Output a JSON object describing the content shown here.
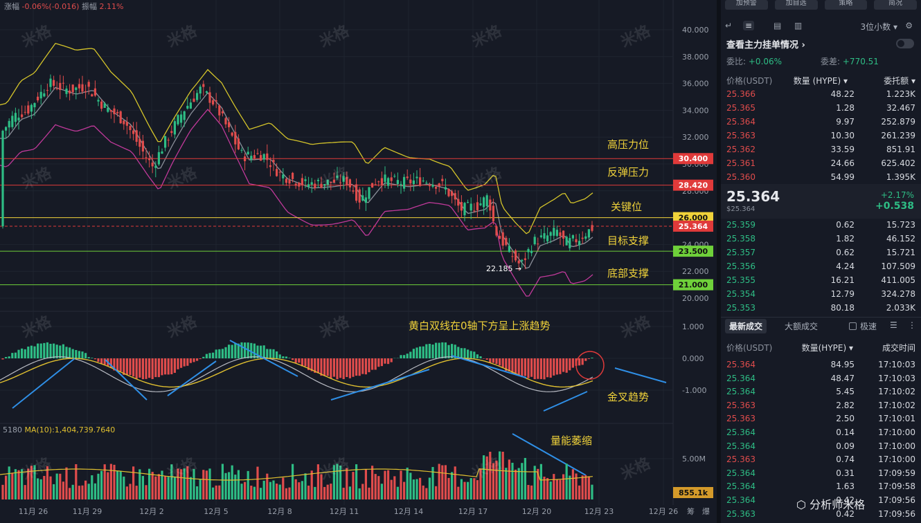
{
  "header": {
    "change_label": "涨幅",
    "change_value": "-0.06%(-0.016)",
    "amplitude_label": "振幅",
    "amplitude_value": "2.11%"
  },
  "volume_info": {
    "prefix": "5180",
    "ma_label": "MA(10):1,404,739.7640"
  },
  "watermark_text": "米格",
  "chart_data": {
    "type": "candlestick",
    "main_axis": {
      "ticks": [
        "40.000",
        "38.000",
        "36.000",
        "34.000",
        "32.000",
        "30.000",
        "28.000",
        "26.000",
        "24.000",
        "22.000",
        "20.000"
      ],
      "ylim": [
        19.6,
        41.4
      ]
    },
    "macd_axis": {
      "ticks": [
        "1.000",
        "0.000",
        "-1.000"
      ]
    },
    "volume_axis": {
      "ticks": [
        "5.00M"
      ]
    },
    "x_ticks": [
      "11月 26",
      "11月 29",
      "12月 2",
      "12月 5",
      "12月 8",
      "12月 11",
      "12月 14",
      "12月 17",
      "12月 20",
      "12月 23",
      "12月 26"
    ],
    "levels": [
      {
        "value": 30.4,
        "label": "30.400",
        "color": "#e03a3a",
        "text_color": "#ffffff"
      },
      {
        "value": 28.42,
        "label": "28.420",
        "color": "#e03a3a",
        "text_color": "#ffffff"
      },
      {
        "value": 26.0,
        "label": "26.000",
        "color": "#f0d23a",
        "text_color": "#111111"
      },
      {
        "value": 25.364,
        "label": "25.364",
        "color": "#e03a3a",
        "text_color": "#ffffff"
      },
      {
        "value": 23.5,
        "label": "23.500",
        "color": "#6fd13a",
        "text_color": "#111111"
      },
      {
        "value": 21.0,
        "label": "21.000",
        "color": "#6fd13a",
        "text_color": "#111111"
      }
    ],
    "volume_tag": "855.1k",
    "low_marker": "22.185 →",
    "annotations": {
      "high_pressure": "高压力位",
      "rebound_pressure": "反弹压力",
      "key_level": "关键位",
      "target_support": "目标支撑",
      "bottom_support": "底部支撑",
      "macd_note": "黄白双线在0轴下方呈上涨趋势",
      "golden_cross": "金叉趋势",
      "volume_shrink": "量能萎缩"
    },
    "bottom_labels": [
      "筹",
      "爆"
    ]
  },
  "panel": {
    "top_buttons": [
      "加预警",
      "加自选",
      "策略",
      "简况"
    ],
    "precision": "3位小数 ▾",
    "main_order_title": "查看主力挂单情况 ›",
    "ratio_label": "委比:",
    "ratio_value": "+0.06%",
    "diff_label": "委差:",
    "diff_value": "+770.51",
    "headers": [
      "价格(USDT)",
      "数量 (HYPE) ▾",
      "委托额 ▾"
    ],
    "asks": [
      [
        "25.366",
        "48.22",
        "1.223K"
      ],
      [
        "25.365",
        "1.28",
        "32.467"
      ],
      [
        "25.364",
        "9.97",
        "252.879"
      ],
      [
        "25.363",
        "10.30",
        "261.239"
      ],
      [
        "25.362",
        "33.59",
        "851.91"
      ],
      [
        "25.361",
        "24.66",
        "625.402"
      ],
      [
        "25.360",
        "54.99",
        "1.395K"
      ]
    ],
    "last_price": "25.364",
    "last_price_usd": "$25.364",
    "change_pct": "+2.17%",
    "change_abs": "+0.538",
    "bids": [
      [
        "25.359",
        "0.62",
        "15.723"
      ],
      [
        "25.358",
        "1.82",
        "46.152"
      ],
      [
        "25.357",
        "0.62",
        "15.721"
      ],
      [
        "25.356",
        "4.24",
        "107.509"
      ],
      [
        "25.355",
        "16.21",
        "411.005"
      ],
      [
        "25.354",
        "12.79",
        "324.278"
      ],
      [
        "25.353",
        "80.18",
        "2.033K"
      ]
    ],
    "tab_latest": "最新成交",
    "tab_large": "大额成交",
    "fast_label": "极速",
    "trade_headers": [
      "价格(USDT)",
      "数量(HYPE) ▾",
      "成交时间"
    ],
    "trades": [
      [
        "25.364",
        "84.95",
        "17:10:03",
        "red"
      ],
      [
        "25.364",
        "48.47",
        "17:10:03",
        "green"
      ],
      [
        "25.364",
        "5.45",
        "17:10:02",
        "green"
      ],
      [
        "25.363",
        "2.82",
        "17:10:02",
        "red"
      ],
      [
        "25.363",
        "2.50",
        "17:10:01",
        "red"
      ],
      [
        "25.364",
        "0.14",
        "17:10:00",
        "green"
      ],
      [
        "25.364",
        "0.09",
        "17:10:00",
        "green"
      ],
      [
        "25.363",
        "0.74",
        "17:10:00",
        "red"
      ],
      [
        "25.364",
        "0.31",
        "17:09:59",
        "green"
      ],
      [
        "25.364",
        "1.63",
        "17:09:58",
        "green"
      ],
      [
        "25.364",
        "0.42",
        "17:09:56",
        "green"
      ],
      [
        "25.363",
        "0.42",
        "17:09:56",
        "green"
      ]
    ],
    "footer_watermark": "分析师米格"
  }
}
